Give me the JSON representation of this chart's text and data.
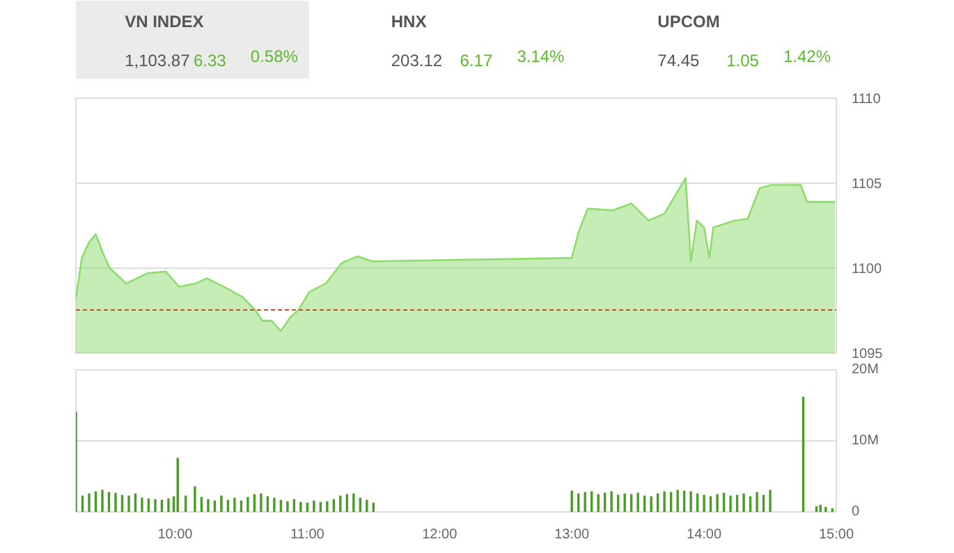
{
  "chart_data": [
    {
      "type": "other",
      "categories": [
        "VN INDEX",
        "HNX",
        "UPCOM"
      ],
      "annotations": [
        "1,103.87",
        "6.33",
        "0.58%",
        "203.12",
        "6.17",
        "3.14%",
        "74.45",
        "1.05",
        "1.42%"
      ]
    },
    {
      "type": "area",
      "xlim": [
        9.25,
        15
      ],
      "ylim": [
        1095,
        1110
      ],
      "yticks": [
        1095,
        1100,
        1105,
        1110
      ],
      "grid": "y",
      "tick_labels": "y",
      "ref_lines": [
        {
          "axis": "y",
          "value": 1097.54,
          "color": "#c0532f",
          "line_style": "dashed"
        }
      ],
      "series": [
        {
          "color": "#8fdc6e",
          "x": [
            9.25,
            9.295,
            9.348,
            9.4,
            9.453,
            9.506,
            9.63,
            9.79,
            9.93,
            10.03,
            10.155,
            10.24,
            10.37,
            10.51,
            10.61,
            10.66,
            10.73,
            10.8,
            10.87,
            10.93,
            11.015,
            11.14,
            11.26,
            11.38,
            11.49,
            13.0,
            13.05,
            13.12,
            13.31,
            13.45,
            13.58,
            13.7,
            13.86,
            13.9,
            13.945,
            14.0,
            14.04,
            14.07,
            14.23,
            14.33,
            14.42,
            14.51,
            14.73,
            14.78,
            14.99
          ],
          "values": [
            1098.2,
            1100.6,
            1101.5,
            1102.0,
            1100.9,
            1100.0,
            1099.1,
            1099.7,
            1099.8,
            1098.9,
            1099.1,
            1099.4,
            1098.9,
            1098.3,
            1097.5,
            1096.9,
            1096.9,
            1096.3,
            1097.1,
            1097.5,
            1098.6,
            1099.1,
            1100.3,
            1100.7,
            1100.4,
            1100.6,
            1102.1,
            1103.5,
            1103.4,
            1103.8,
            1102.8,
            1103.2,
            1105.3,
            1100.4,
            1102.8,
            1102.4,
            1100.6,
            1102.4,
            1102.8,
            1102.9,
            1104.7,
            1104.9,
            1104.9,
            1103.9,
            1103.9
          ]
        }
      ]
    },
    {
      "type": "bar",
      "xlim": [
        9.25,
        15
      ],
      "ylim": [
        0,
        20
      ],
      "grid": "y",
      "xticks": [
        {
          "value": 10,
          "label": "10:00"
        },
        {
          "value": 11,
          "label": "11:00"
        },
        {
          "value": 12,
          "label": "12:00"
        },
        {
          "value": 13,
          "label": "13:00"
        },
        {
          "value": 14,
          "label": "14:00"
        },
        {
          "value": 15,
          "label": "15:00"
        }
      ],
      "yticks": [
        0,
        {
          "value": 10,
          "label": "10M"
        },
        {
          "value": 20,
          "label": "20M"
        }
      ],
      "series": [
        {
          "color": "#4c9a2a",
          "x": [
            9.25,
            9.3,
            9.35,
            9.4,
            9.45,
            9.5,
            9.55,
            9.6,
            9.65,
            9.7,
            9.75,
            9.8,
            9.85,
            9.9,
            9.95,
            9.99,
            10.02,
            10.08,
            10.15,
            10.2,
            10.25,
            10.3,
            10.35,
            10.4,
            10.45,
            10.5,
            10.55,
            10.6,
            10.65,
            10.7,
            10.75,
            10.8,
            10.85,
            10.9,
            10.95,
            11.0,
            11.05,
            11.1,
            11.15,
            11.2,
            11.25,
            11.3,
            11.35,
            11.4,
            11.45,
            11.5,
            13.0,
            13.05,
            13.1,
            13.15,
            13.2,
            13.25,
            13.3,
            13.35,
            13.4,
            13.45,
            13.5,
            13.55,
            13.6,
            13.65,
            13.7,
            13.75,
            13.8,
            13.85,
            13.9,
            13.95,
            14.0,
            14.05,
            14.1,
            14.15,
            14.2,
            14.25,
            14.3,
            14.35,
            14.4,
            14.45,
            14.5,
            14.75,
            14.85,
            14.88,
            14.92,
            14.97
          ],
          "values": [
            14.1,
            2.3,
            2.6,
            2.9,
            3.1,
            2.8,
            2.7,
            2.4,
            2.3,
            2.6,
            2.0,
            1.9,
            1.8,
            1.7,
            1.9,
            2.2,
            7.6,
            2.3,
            3.6,
            2.1,
            1.8,
            1.6,
            2.3,
            1.7,
            2.0,
            1.6,
            2.1,
            2.5,
            2.6,
            2.2,
            2.0,
            1.7,
            1.5,
            1.8,
            1.4,
            1.3,
            1.6,
            1.4,
            1.5,
            1.8,
            2.3,
            2.5,
            2.6,
            2.0,
            1.7,
            1.3,
            3.0,
            2.6,
            2.8,
            2.9,
            2.5,
            2.7,
            2.9,
            2.4,
            2.6,
            2.5,
            2.7,
            2.3,
            2.2,
            2.6,
            2.9,
            2.8,
            3.1,
            3.0,
            2.9,
            2.6,
            2.4,
            2.2,
            2.5,
            2.7,
            2.3,
            2.4,
            2.6,
            2.2,
            2.8,
            2.4,
            3.1,
            16.2,
            0.8,
            1.0,
            0.7,
            0.5
          ]
        }
      ]
    }
  ]
}
